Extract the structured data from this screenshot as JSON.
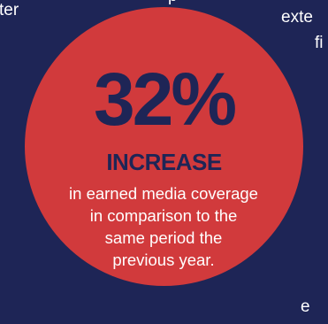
{
  "background_color": "#1e2556",
  "accent_color": "#d13a3c",
  "background_text": {
    "top_left": "ter",
    "top_mid": "p",
    "top_right": "exte",
    "right": "fi",
    "bottom_right": "e"
  },
  "stat": {
    "number": "32%",
    "label": "INCREASE",
    "description_lines": [
      "in earned media coverage",
      "in comparison to the",
      "same period the",
      "previous year."
    ]
  }
}
